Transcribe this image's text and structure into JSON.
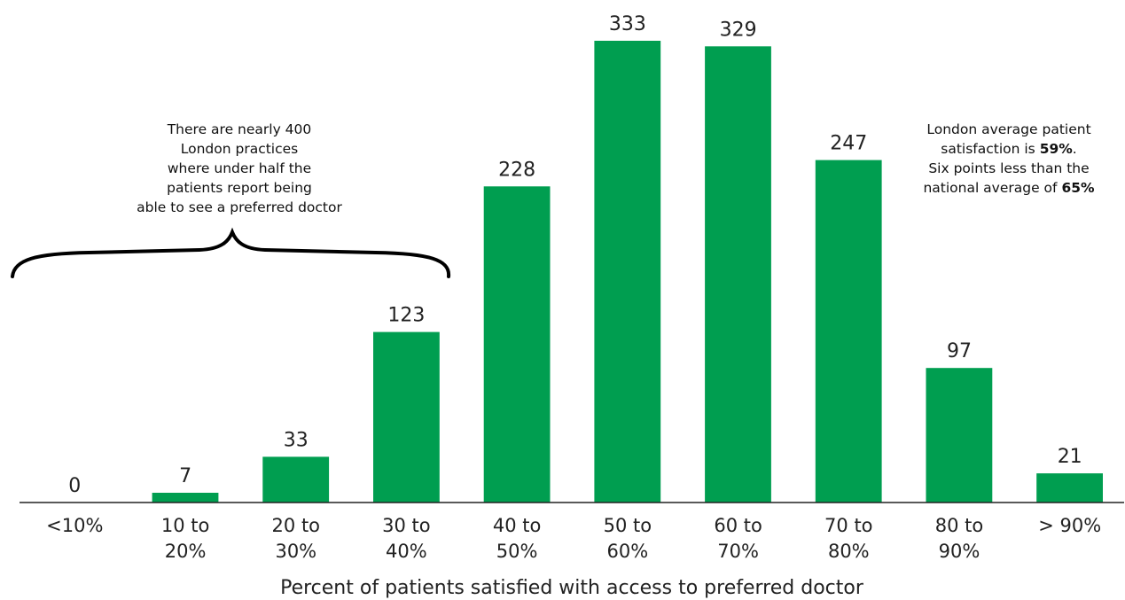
{
  "chart_data": {
    "type": "bar",
    "categories": [
      "<10%",
      "10 to 20%",
      "20 to 30%",
      "30 to 40%",
      "40 to 50%",
      "50 to 60%",
      "60 to 70%",
      "70 to 80%",
      "80 to 90%",
      "> 90%"
    ],
    "category_lines": [
      [
        "<10%"
      ],
      [
        "10 to",
        "20%"
      ],
      [
        "20 to",
        "30%"
      ],
      [
        "30 to",
        "40%"
      ],
      [
        "40 to",
        "50%"
      ],
      [
        "50 to",
        "60%"
      ],
      [
        "60 to",
        "70%"
      ],
      [
        "70 to",
        "80%"
      ],
      [
        "80 to",
        "90%"
      ],
      [
        "> 90%"
      ]
    ],
    "values": [
      0,
      7,
      33,
      123,
      228,
      333,
      329,
      247,
      97,
      21
    ],
    "data_labels": [
      "0",
      "7",
      "33",
      "123",
      "228",
      "333",
      "329",
      "247",
      "97",
      "21"
    ],
    "xlabel": "Percent of patients satisfied with access to preferred doctor",
    "ylabel": "",
    "ylim": [
      0,
      333
    ],
    "grid": false,
    "legend": "none",
    "colors": {
      "bar": "#009e50",
      "axis": "#222222",
      "brace": "#000000"
    },
    "annotations": {
      "left_lines": [
        "There are nearly 400",
        "London practices",
        "where under half the",
        "patients report being",
        "able to see a preferred doctor"
      ],
      "right": {
        "line1": "London average patient",
        "line2_prefix": "satisfaction is ",
        "line2_value": "59%",
        "line2_suffix": ".",
        "line3": "Six points less than the",
        "line4_prefix": "national average of ",
        "line4_value": "65%"
      }
    }
  }
}
